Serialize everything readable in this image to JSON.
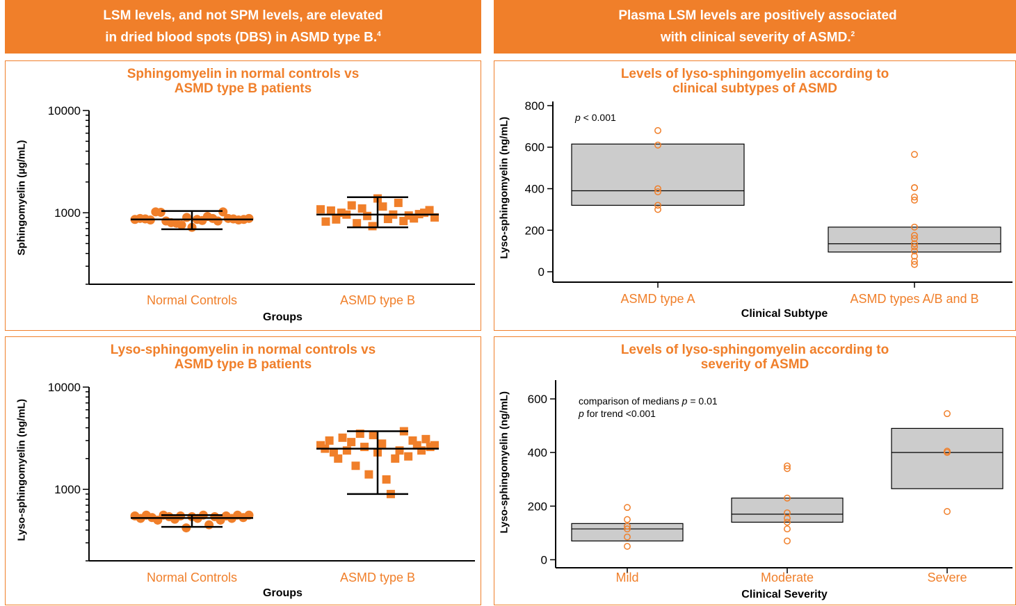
{
  "headers": {
    "left": {
      "line1": "LSM levels, and not SPM levels, are elevated",
      "line2": "in dried blood spots (DBS) in ASMD type B.",
      "ref": "4"
    },
    "right": {
      "line1": "Plasma LSM levels are positively associated",
      "line2": "with clinical severity of ASMD.",
      "ref": "2"
    }
  },
  "colors": {
    "accent": "#F07F2A",
    "box_fill": "#CCCCCC"
  },
  "chart_data": [
    {
      "id": "spm",
      "type": "scatter",
      "title_line1": "Sphingomyelin in normal controls vs",
      "title_line2": "ASMD type B patients",
      "xlabel": "Groups",
      "ylabel": "Sphingomyelin (µg/mL)",
      "yscale": "log",
      "ylim": [
        200,
        10000
      ],
      "yticks": [
        "1000",
        "10000"
      ],
      "categories": [
        "Normal Controls",
        "ASMD type B"
      ],
      "series": [
        {
          "category": "Normal Controls",
          "marker": "circle",
          "values": [
            860,
            880,
            870,
            850,
            1020,
            1010,
            830,
            800,
            790,
            760,
            900,
            720,
            860,
            840,
            920,
            880,
            830,
            1020,
            880,
            870,
            850,
            860,
            880
          ],
          "mean": 860,
          "sd_low": 690,
          "sd_high": 1040
        },
        {
          "category": "ASMD type B",
          "marker": "square",
          "values": [
            1080,
            820,
            1050,
            860,
            1000,
            960,
            1180,
            790,
            1100,
            930,
            740,
            1380,
            1150,
            870,
            960,
            1250,
            830,
            940,
            880,
            970,
            1000,
            1060,
            900
          ],
          "mean": 960,
          "sd_low": 720,
          "sd_high": 1420
        }
      ]
    },
    {
      "id": "lsm",
      "type": "scatter",
      "title_line1": "Lyso-sphingomyelin in normal controls vs",
      "title_line2": "ASMD type B patients",
      "xlabel": "Groups",
      "ylabel": "Lyso-sphingomyelin (ng/mL)",
      "yscale": "log",
      "ylim": [
        200,
        10000
      ],
      "yticks": [
        "1000",
        "10000"
      ],
      "categories": [
        "Normal Controls",
        "ASMD type B"
      ],
      "series": [
        {
          "category": "Normal Controls",
          "marker": "circle",
          "values": [
            550,
            520,
            560,
            530,
            500,
            560,
            540,
            510,
            550,
            420,
            540,
            520,
            560,
            450,
            540,
            500,
            550,
            520,
            560,
            530,
            560
          ],
          "mean": 525,
          "sd_low": 430,
          "sd_high": 560
        },
        {
          "category": "ASMD type B",
          "marker": "square",
          "values": [
            2700,
            2500,
            3000,
            2300,
            2000,
            3200,
            2400,
            2900,
            1700,
            3500,
            2600,
            1400,
            3400,
            2300,
            2800,
            1250,
            900,
            2000,
            2400,
            3700,
            2100,
            3000,
            2700,
            2400,
            3100,
            2600,
            2700
          ],
          "mean": 2500,
          "sd_low": 900,
          "sd_high": 3700
        }
      ]
    },
    {
      "id": "subtype",
      "type": "box",
      "title_line1": "Levels of lyso-sphingomyelin according to",
      "title_line2": "clinical subtypes of ASMD",
      "xlabel": "Clinical Subtype",
      "ylabel": "Lyso-sphingomyelin (ng/mL)",
      "ylim": [
        -50,
        820
      ],
      "yticks": [
        0,
        200,
        400,
        600,
        800
      ],
      "annotation": {
        "p_label": "p",
        "text": " < 0.001"
      },
      "categories": [
        "ASMD type A",
        "ASMD types A/B and B"
      ],
      "boxes": [
        {
          "q1": 320,
          "median": 390,
          "q3": 615
        },
        {
          "q1": 95,
          "median": 135,
          "q3": 215
        }
      ],
      "points": [
        [
          680,
          610,
          400,
          385,
          320,
          300
        ],
        [
          565,
          405,
          405,
          360,
          345,
          215,
          175,
          160,
          135,
          120,
          100,
          75,
          50,
          35
        ]
      ]
    },
    {
      "id": "severity",
      "type": "box",
      "title_line1": "Levels of lyso-sphingomyelin according to",
      "title_line2": "severity of ASMD",
      "xlabel": "Clinical Severity",
      "ylabel": "Lyso-sphingomyelin (ng/mL)",
      "ylim": [
        -30,
        670
      ],
      "yticks": [
        0,
        200,
        400,
        600
      ],
      "annotation": {
        "line1_prefix": "comparison of medians ",
        "p_label": "p",
        "line1_suffix": " = 0.01",
        "line2_suffix": " for trend <0.001"
      },
      "categories": [
        "Mild",
        "Moderate",
        "Severe"
      ],
      "boxes": [
        {
          "q1": 70,
          "median": 115,
          "q3": 135
        },
        {
          "q1": 140,
          "median": 170,
          "q3": 230
        },
        {
          "q1": 265,
          "median": 400,
          "q3": 490
        }
      ],
      "points": [
        [
          195,
          150,
          125,
          115,
          85,
          50
        ],
        [
          350,
          340,
          230,
          175,
          155,
          140,
          115,
          70
        ],
        [
          545,
          405,
          400,
          180
        ]
      ]
    }
  ]
}
